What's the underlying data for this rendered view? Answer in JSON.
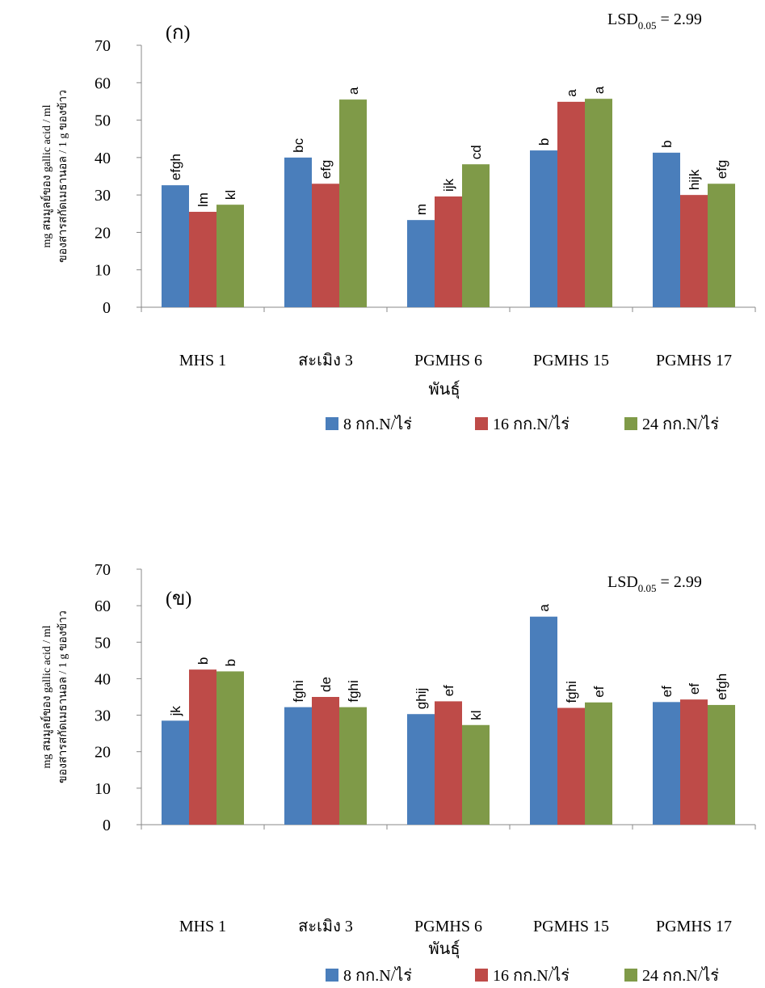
{
  "chart_data": [
    {
      "type": "bar",
      "panel": "(ก)",
      "lsd": {
        "text": "LSD",
        "sub": "0.05",
        "rest": " = 2.99"
      },
      "ylabel": [
        "mg สมมูลย์ของ gallic acid / ml",
        "ของสารสกัดเมธานอล / 1 g ของข้าว"
      ],
      "xlabel": "พันธุ์",
      "categories": [
        "MHS 1",
        "สะเมิง 3",
        "PGMHS 6",
        "PGMHS 15",
        "PGMHS 17"
      ],
      "ylim": [
        0,
        70
      ],
      "yticks": [
        0,
        10,
        20,
        30,
        40,
        50,
        60,
        70
      ],
      "series": [
        {
          "name": "8 กก.N/ไร่",
          "color": "#4a7ebb",
          "values": [
            32.6,
            40,
            23.3,
            41.9,
            41.3
          ],
          "significance": [
            "efgh",
            "bc",
            "m",
            "b",
            "b"
          ]
        },
        {
          "name": "16 กก.N/ไร่",
          "color": "#be4b48",
          "values": [
            25.5,
            33,
            29.6,
            54.9,
            30
          ],
          "significance": [
            "lm",
            "efg",
            "ijk",
            "a",
            "hijk"
          ]
        },
        {
          "name": "24 กก.N/ไร่",
          "color": "#7f9a48",
          "values": [
            27.4,
            55.5,
            38.2,
            55.7,
            33
          ],
          "significance": [
            "kl",
            "a",
            "cd",
            "a",
            "efg"
          ]
        }
      ]
    },
    {
      "type": "bar",
      "panel": "(ข)",
      "lsd": {
        "text": "LSD",
        "sub": "0.05",
        "rest": " = 2.99"
      },
      "ylabel": [
        "mg สมมูลย์ของ gallic acid / ml",
        "ของสารสกัดเมธานอล / 1 g ของข้าว"
      ],
      "xlabel": "พันธุ์",
      "categories": [
        "MHS 1",
        "สะเมิง 3",
        "PGMHS 6",
        "PGMHS 15",
        "PGMHS 17"
      ],
      "ylim": [
        0,
        70
      ],
      "yticks": [
        0,
        10,
        20,
        30,
        40,
        50,
        60,
        70
      ],
      "series": [
        {
          "name": "8 กก.N/ไร่",
          "color": "#4a7ebb",
          "values": [
            28.5,
            32.2,
            30.3,
            57,
            33.6
          ],
          "significance": [
            "jk",
            "fghi",
            "ghij",
            "a",
            "ef"
          ]
        },
        {
          "name": "16 กก.N/ไร่",
          "color": "#be4b48",
          "values": [
            42.5,
            35,
            33.8,
            32,
            34.3
          ],
          "significance": [
            "b",
            "de",
            "ef",
            "fghi",
            "ef"
          ]
        },
        {
          "name": "24 กก.N/ไร่",
          "color": "#7f9a48",
          "values": [
            42,
            32.2,
            27.3,
            33.5,
            32.8
          ],
          "significance": [
            "b",
            "fghi",
            "kl",
            "ef",
            "efgh"
          ]
        }
      ]
    }
  ]
}
